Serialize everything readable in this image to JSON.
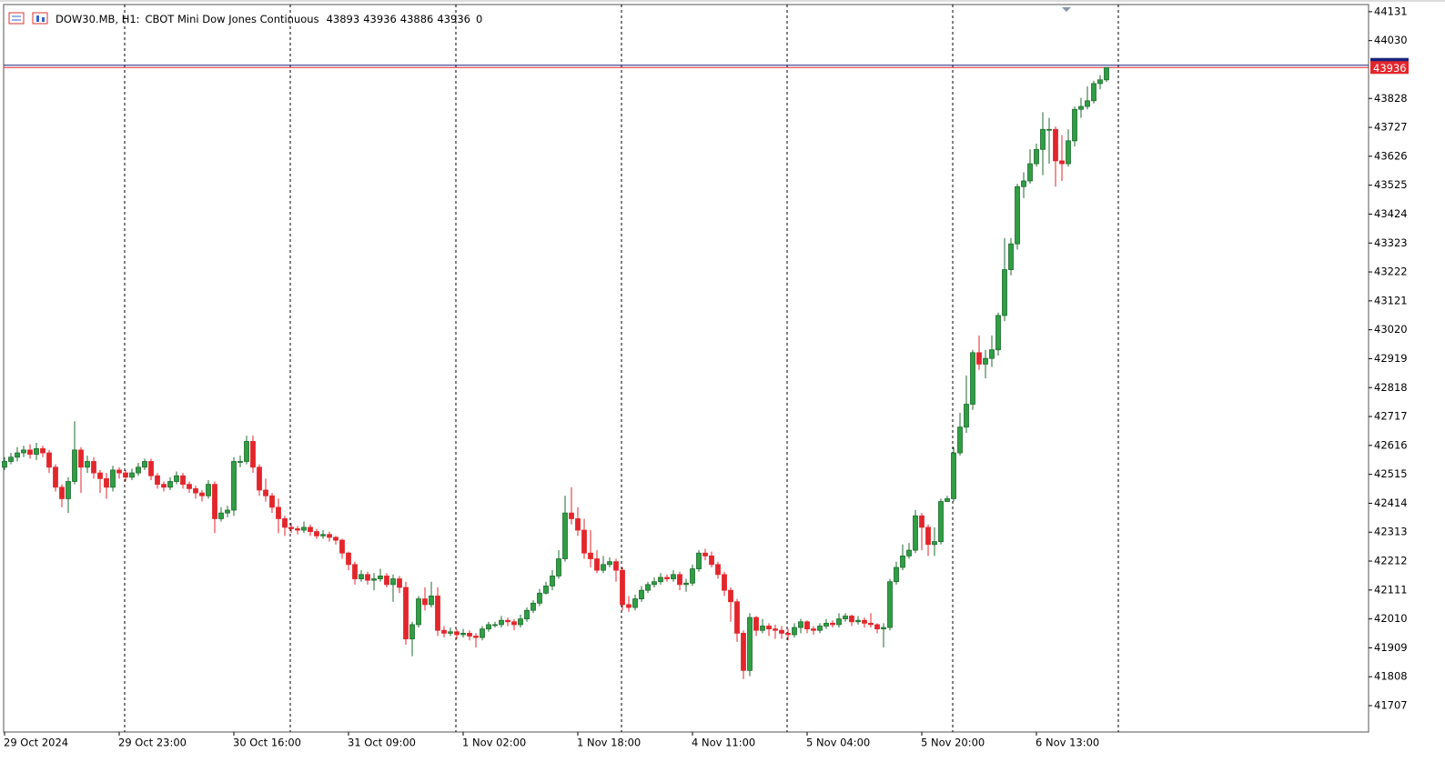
{
  "chart_data": {
    "type": "candlestick",
    "symbol": "DOW30.MB, H1:",
    "description": "CBOT Mini Dow Jones Continuous",
    "last_volume": 0,
    "up_color": "#2f9e44",
    "up_edge": "#1d6b2c",
    "down_color": "#e3262c",
    "bid_line": 43936,
    "bid_color": "#e3262c",
    "ask_line": 43944,
    "ask_color": "#1a237e",
    "ylim": [
      41615,
      44156
    ],
    "yticks": [
      44131,
      44030,
      43828,
      43727,
      43626,
      43525,
      43424,
      43323,
      43222,
      43121,
      43020,
      42919,
      42818,
      42717,
      42616,
      42515,
      42414,
      42313,
      42212,
      42111,
      42010,
      41909,
      41808,
      41707
    ],
    "categories": [
      "29 Oct 2024",
      null,
      null,
      null,
      null,
      null,
      null,
      null,
      null,
      null,
      null,
      null,
      null,
      null,
      null,
      null,
      null,
      null,
      "29 Oct 23:00",
      null,
      null,
      null,
      null,
      null,
      null,
      null,
      null,
      null,
      null,
      null,
      null,
      null,
      null,
      null,
      null,
      null,
      "30 Oct 16:00",
      null,
      null,
      null,
      null,
      null,
      null,
      null,
      null,
      null,
      null,
      null,
      null,
      null,
      null,
      null,
      null,
      null,
      "31 Oct 09:00",
      null,
      null,
      null,
      null,
      null,
      null,
      null,
      null,
      null,
      null,
      null,
      null,
      null,
      null,
      null,
      null,
      null,
      "1 Nov 02:00",
      null,
      null,
      null,
      null,
      null,
      null,
      null,
      null,
      null,
      null,
      null,
      null,
      null,
      null,
      null,
      null,
      null,
      "1 Nov 18:00",
      null,
      null,
      null,
      null,
      null,
      null,
      null,
      null,
      null,
      null,
      null,
      null,
      null,
      null,
      null,
      null,
      null,
      "4 Nov 11:00",
      null,
      null,
      null,
      null,
      null,
      null,
      null,
      null,
      null,
      null,
      null,
      null,
      null,
      null,
      null,
      null,
      null,
      "5 Nov 04:00",
      null,
      null,
      null,
      null,
      null,
      null,
      null,
      null,
      null,
      null,
      null,
      null,
      null,
      null,
      null,
      null,
      null,
      "5 Nov 20:00",
      null,
      null,
      null,
      null,
      null,
      null,
      null,
      null,
      null,
      null,
      null,
      null,
      null,
      null,
      null,
      null,
      null,
      "6 Nov 13:00",
      null,
      null,
      null,
      null,
      null,
      null,
      null,
      null,
      null,
      null,
      null
    ],
    "open": [
      42540,
      42560,
      42575,
      42590,
      42600,
      42585,
      42605,
      42590,
      42540,
      42470,
      42430,
      42490,
      42600,
      42540,
      42560,
      42520,
      42500,
      42470,
      42530,
      42520,
      42505,
      42520,
      42540,
      42560,
      42510,
      42480,
      42470,
      42490,
      42510,
      42480,
      42465,
      42450,
      42440,
      42480,
      42360,
      42380,
      42390,
      42560,
      42560,
      42630,
      42540,
      42460,
      42440,
      42400,
      42360,
      42330,
      42325,
      42320,
      42330,
      42315,
      42300,
      42305,
      42295,
      42285,
      42240,
      42200,
      42150,
      42165,
      42145,
      42150,
      42160,
      42130,
      42150,
      42120,
      41940,
      41990,
      42080,
      42060,
      42090,
      41970,
      41960,
      41965,
      41955,
      41960,
      41950,
      41945,
      41975,
      41990,
      41990,
      42005,
      42000,
      41990,
      42010,
      42040,
      42065,
      42100,
      42125,
      42160,
      42220,
      42380,
      42360,
      42320,
      42240,
      42220,
      42180,
      42200,
      42210,
      42180,
      42060,
      42050,
      42080,
      42110,
      42130,
      42140,
      42155,
      42150,
      42165,
      42130,
      42135,
      42185,
      42240,
      42230,
      42200,
      42165,
      42110,
      42070,
      41960,
      41830,
      42015,
      41970,
      41985,
      41975,
      41970,
      41960,
      41955,
      41980,
      42000,
      41975,
      41970,
      41985,
      41995,
      41990,
      42010,
      42020,
      42000,
      42005,
      41995,
      41990,
      41975,
      41980,
      42140,
      42190,
      42230,
      42250,
      42370,
      42330,
      42270,
      42280,
      42420,
      42430,
      42590,
      42680,
      42760,
      42940,
      42900,
      42920,
      42950,
      43070,
      43230,
      43320,
      43520,
      43540,
      43600,
      43650,
      43720,
      43720,
      43610,
      43600,
      43680,
      43790,
      43800,
      43820,
      43880,
      43893
    ],
    "high": [
      42575,
      42590,
      42610,
      42615,
      42620,
      42625,
      42615,
      42600,
      42550,
      42480,
      42505,
      42700,
      42610,
      42580,
      42575,
      42530,
      42520,
      42545,
      42540,
      42530,
      42535,
      42555,
      42570,
      42570,
      42520,
      42490,
      42505,
      42525,
      42520,
      42490,
      42475,
      42460,
      42495,
      42490,
      42400,
      42405,
      42575,
      42580,
      42650,
      42650,
      42550,
      42500,
      42450,
      42430,
      42370,
      42345,
      42335,
      42350,
      42340,
      42325,
      42320,
      42315,
      42300,
      42290,
      42245,
      42210,
      42180,
      42175,
      42170,
      42185,
      42170,
      42165,
      42160,
      42140,
      42000,
      42090,
      42120,
      42140,
      42120,
      41985,
      41980,
      41975,
      41975,
      41970,
      41960,
      41985,
      42000,
      42000,
      42020,
      42015,
      42010,
      42025,
      42050,
      42075,
      42115,
      42140,
      42180,
      42250,
      42440,
      42470,
      42400,
      42360,
      42320,
      42250,
      42230,
      42225,
      42220,
      42190,
      42090,
      42095,
      42125,
      42140,
      42155,
      42170,
      42165,
      42180,
      42175,
      42150,
      42200,
      42250,
      42255,
      42245,
      42210,
      42175,
      42120,
      42080,
      41970,
      42030,
      42020,
      42010,
      41995,
      41990,
      41985,
      41975,
      41995,
      42010,
      42005,
      41985,
      41995,
      42010,
      42005,
      42030,
      42030,
      42025,
      42020,
      42015,
      42030,
      41995,
      41995,
      42150,
      42210,
      42270,
      42275,
      42390,
      42380,
      42340,
      42330,
      42430,
      42440,
      42610,
      42730,
      42860,
      42950,
      43000,
      42950,
      43000,
      43080,
      43340,
      43340,
      43530,
      43570,
      43650,
      43670,
      43780,
      43760,
      43730,
      43700,
      43720,
      43800,
      43830,
      43870,
      43890,
      43910,
      43936
    ],
    "low": [
      42530,
      42550,
      42560,
      42575,
      42570,
      42565,
      42575,
      42520,
      42455,
      42400,
      42380,
      42480,
      42450,
      42520,
      42500,
      42450,
      42430,
      42455,
      42500,
      42490,
      42495,
      42510,
      42530,
      42495,
      42465,
      42455,
      42460,
      42480,
      42465,
      42450,
      42430,
      42420,
      42430,
      42310,
      42350,
      42365,
      42370,
      42540,
      42550,
      42520,
      42440,
      42420,
      42380,
      42310,
      42300,
      42310,
      42305,
      42310,
      42300,
      42290,
      42290,
      42280,
      42270,
      42220,
      42180,
      42130,
      42140,
      42130,
      42110,
      42140,
      42120,
      42070,
      42100,
      41920,
      41880,
      41980,
      42040,
      42050,
      41950,
      41945,
      41950,
      41940,
      41945,
      41935,
      41910,
      41935,
      41965,
      41980,
      41980,
      41985,
      41970,
      41980,
      42000,
      42030,
      42055,
      42095,
      42110,
      42150,
      42210,
      42340,
      42300,
      42220,
      42190,
      42170,
      42170,
      42190,
      42140,
      42040,
      42035,
      42040,
      42070,
      42100,
      42120,
      42130,
      42140,
      42140,
      42110,
      42105,
      42125,
      42175,
      42215,
      42190,
      42150,
      42090,
      42000,
      41930,
      41800,
      41810,
      41950,
      41960,
      41950,
      41940,
      41940,
      41935,
      41945,
      41960,
      41960,
      41955,
      41960,
      41975,
      41980,
      41980,
      42000,
      41985,
      41990,
      41980,
      41980,
      41960,
      41910,
      41970,
      42130,
      42180,
      42220,
      42240,
      42250,
      42230,
      42230,
      42270,
      42420,
      42420,
      42580,
      42660,
      42740,
      42880,
      42850,
      42890,
      42930,
      43050,
      43210,
      43300,
      43480,
      43530,
      43590,
      43560,
      43600,
      43520,
      43540,
      43590,
      43660,
      43760,
      43790,
      43810,
      43860,
      43886
    ],
    "close": [
      42560,
      42575,
      42590,
      42600,
      42585,
      42605,
      42590,
      42540,
      42470,
      42430,
      42490,
      42600,
      42540,
      42560,
      42520,
      42500,
      42470,
      42530,
      42520,
      42505,
      42520,
      42540,
      42560,
      42510,
      42480,
      42470,
      42490,
      42510,
      42480,
      42465,
      42450,
      42440,
      42480,
      42360,
      42380,
      42390,
      42560,
      42560,
      42630,
      42540,
      42460,
      42440,
      42400,
      42360,
      42330,
      42325,
      42320,
      42330,
      42315,
      42300,
      42305,
      42295,
      42285,
      42240,
      42200,
      42150,
      42165,
      42145,
      42150,
      42160,
      42130,
      42150,
      42120,
      41940,
      41990,
      42080,
      42060,
      42090,
      41970,
      41960,
      41965,
      41955,
      41960,
      41950,
      41945,
      41975,
      41990,
      41990,
      42005,
      42000,
      41990,
      42010,
      42040,
      42065,
      42100,
      42125,
      42160,
      42220,
      42380,
      42360,
      42320,
      42240,
      42220,
      42180,
      42200,
      42210,
      42180,
      42060,
      42050,
      42080,
      42110,
      42130,
      42140,
      42155,
      42150,
      42165,
      42130,
      42135,
      42185,
      42240,
      42230,
      42200,
      42165,
      42110,
      42070,
      41960,
      41830,
      42015,
      41970,
      41985,
      41975,
      41970,
      41960,
      41955,
      41980,
      42000,
      41975,
      41970,
      41985,
      41995,
      41990,
      42010,
      42020,
      42000,
      42005,
      41995,
      41990,
      41975,
      41980,
      42140,
      42190,
      42230,
      42250,
      42370,
      42330,
      42270,
      42280,
      42420,
      42430,
      42590,
      42680,
      42760,
      42940,
      42900,
      42920,
      42950,
      43070,
      43230,
      43320,
      43520,
      43540,
      43600,
      43650,
      43720,
      43720,
      43610,
      43600,
      43680,
      43790,
      43800,
      43820,
      43880,
      43893,
      43936
    ]
  }
}
